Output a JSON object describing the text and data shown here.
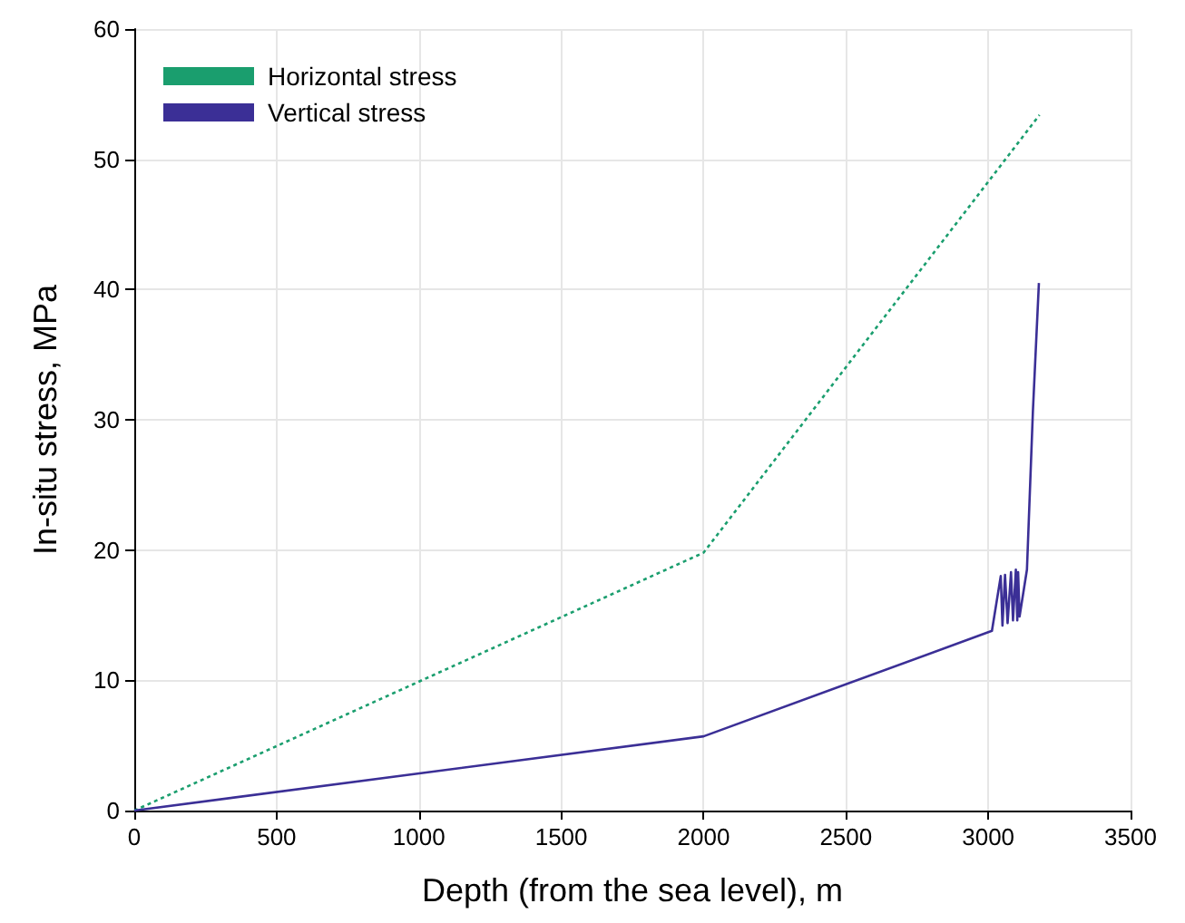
{
  "chart_data": {
    "type": "line",
    "xlabel": "Depth (from the sea level), m",
    "ylabel": "In-situ stress, MPa",
    "xlim": [
      0,
      3500
    ],
    "xticks": [
      0,
      500,
      1000,
      1500,
      2000,
      2500,
      3000,
      3500
    ],
    "ylim": [
      0,
      60
    ],
    "yticks": [
      0,
      10,
      20,
      30,
      40,
      50,
      60
    ],
    "grid": true,
    "legend": "top left",
    "marker": "none",
    "series": [
      {
        "name": "Horizontal stress",
        "color": "#1a9e6e",
        "line_style": "dotted",
        "x": [
          0,
          2000,
          3180
        ],
        "values": [
          0,
          19.8,
          53.4
        ]
      },
      {
        "name": "Vertical stress",
        "color": "#3b2f96",
        "line_style": "solid",
        "x": [
          0,
          2000,
          3013,
          3044,
          3050,
          3059,
          3068,
          3080,
          3087,
          3097,
          3102,
          3105,
          3110,
          3136,
          3157,
          3178
        ],
        "values": [
          0,
          5.7,
          13.8,
          18.0,
          14.2,
          18.1,
          14.4,
          18.3,
          14.6,
          18.5,
          14.6,
          18.3,
          14.9,
          18.5,
          30.7,
          40.5
        ]
      }
    ]
  }
}
